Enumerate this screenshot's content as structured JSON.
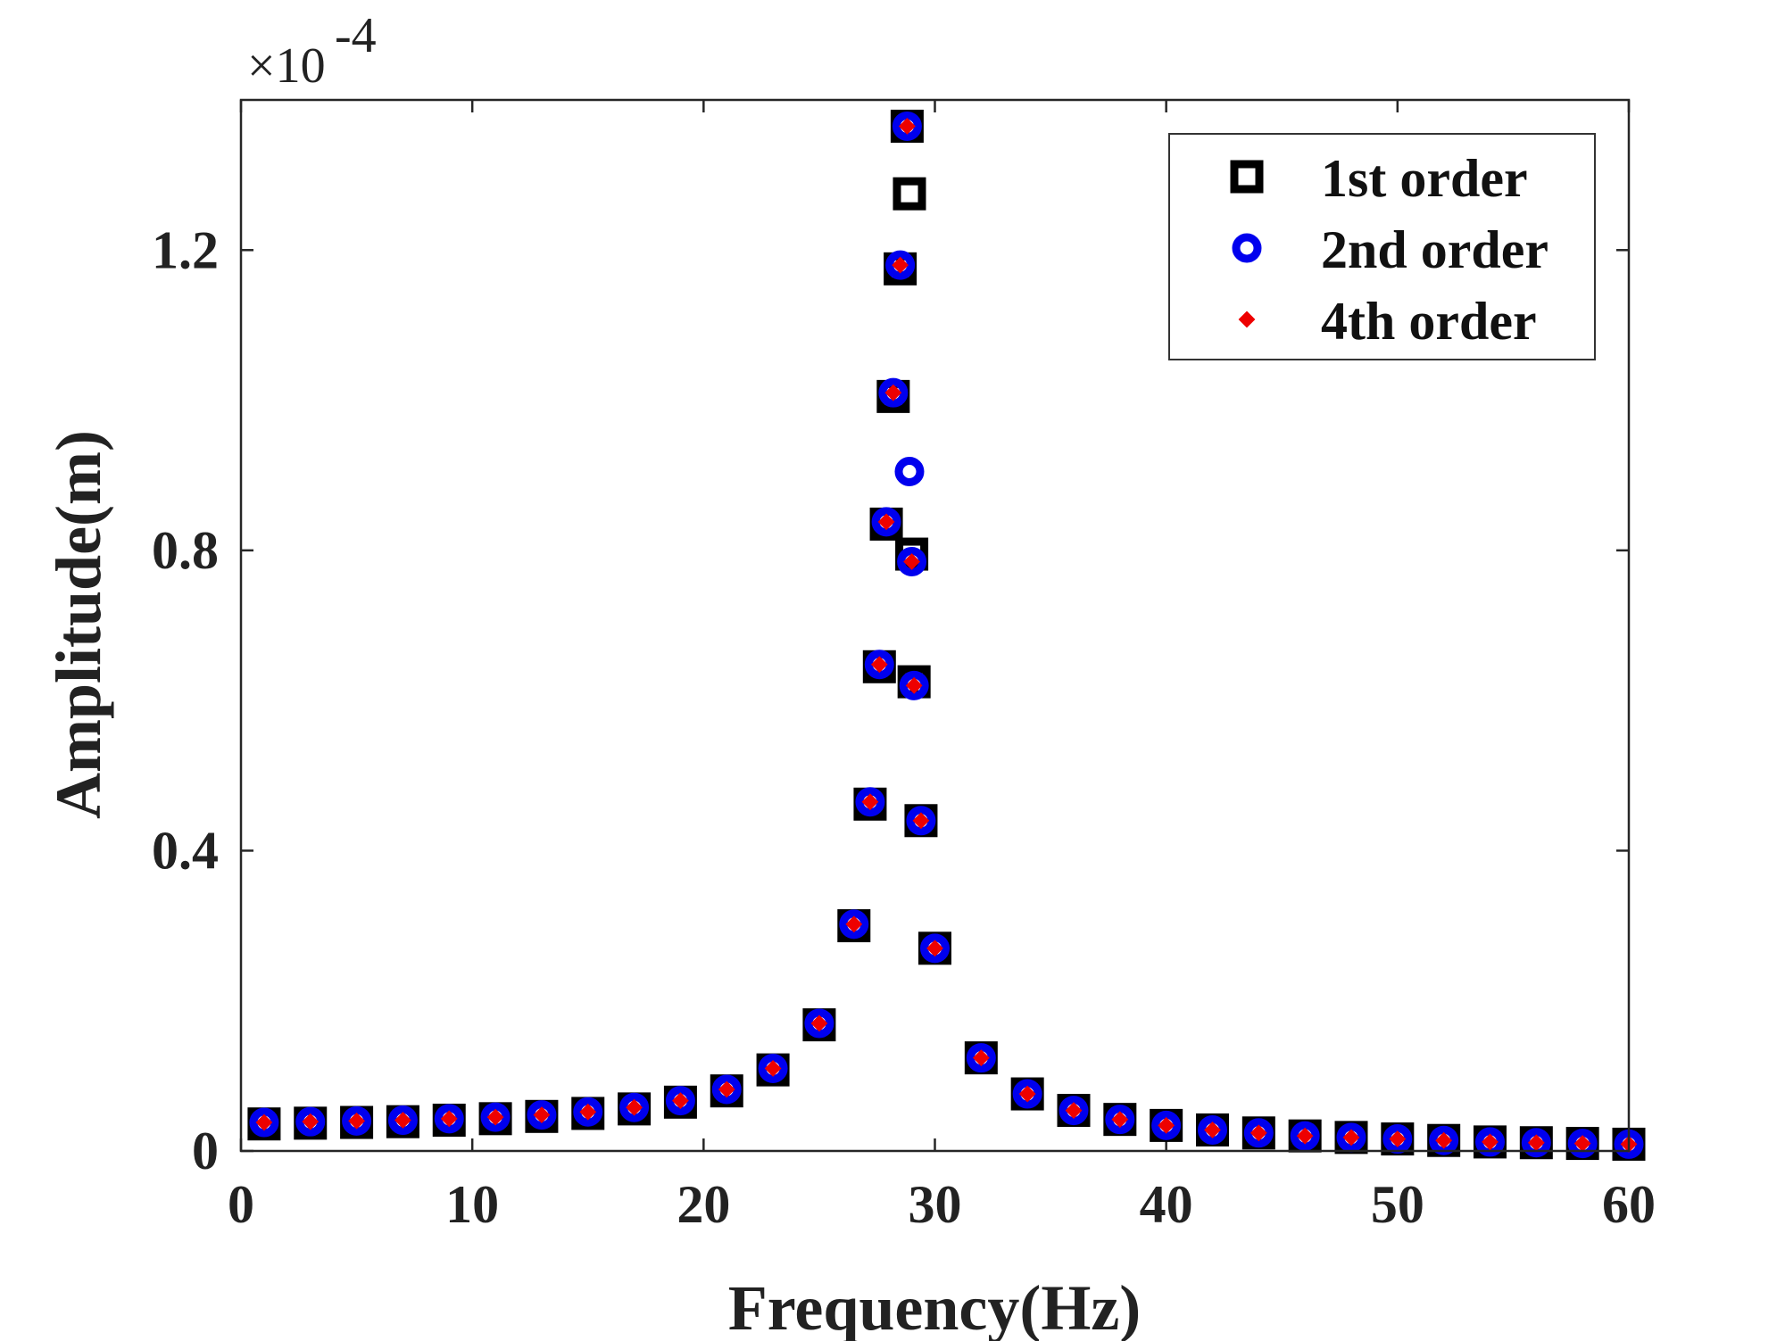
{
  "chart_data": {
    "type": "scatter",
    "xlabel": "Frequency(Hz)",
    "ylabel": "Amplitude(m)",
    "y_multiplier_label": "×10",
    "y_multiplier_exponent": "-4",
    "xlim": [
      0,
      60
    ],
    "ylim": [
      0,
      1.4
    ],
    "x_ticks": [
      "0",
      "10",
      "20",
      "30",
      "40",
      "50",
      "60"
    ],
    "y_ticks": [
      "0",
      "0.4",
      "0.8",
      "1.2"
    ],
    "grid": false,
    "legend_position": "top-right",
    "series": [
      {
        "name": "1st order",
        "marker": "square",
        "color": "#000000",
        "points": [
          [
            1,
            0.036
          ],
          [
            3,
            0.037
          ],
          [
            5,
            0.038
          ],
          [
            7,
            0.039
          ],
          [
            9,
            0.041
          ],
          [
            11,
            0.043
          ],
          [
            13,
            0.046
          ],
          [
            15,
            0.05
          ],
          [
            17,
            0.056
          ],
          [
            19,
            0.065
          ],
          [
            21,
            0.08
          ],
          [
            23,
            0.108
          ],
          [
            25,
            0.168
          ],
          [
            26.5,
            0.3
          ],
          [
            27.2,
            0.462
          ],
          [
            27.6,
            0.645
          ],
          [
            27.9,
            0.835
          ],
          [
            28.2,
            1.005
          ],
          [
            28.5,
            1.175
          ],
          [
            28.8,
            1.365
          ],
          [
            28.9,
            1.275
          ],
          [
            29.0,
            0.795
          ],
          [
            29.1,
            0.625
          ],
          [
            29.4,
            0.44
          ],
          [
            30,
            0.27
          ],
          [
            32,
            0.124
          ],
          [
            34,
            0.076
          ],
          [
            36,
            0.054
          ],
          [
            38,
            0.042
          ],
          [
            40,
            0.034
          ],
          [
            42,
            0.028
          ],
          [
            44,
            0.024
          ],
          [
            46,
            0.02
          ],
          [
            48,
            0.018
          ],
          [
            50,
            0.016
          ],
          [
            52,
            0.014
          ],
          [
            54,
            0.012
          ],
          [
            56,
            0.011
          ],
          [
            58,
            0.01
          ],
          [
            60,
            0.009
          ]
        ]
      },
      {
        "name": "2nd order",
        "marker": "circle",
        "color": "#0000ee",
        "points": [
          [
            1,
            0.038
          ],
          [
            3,
            0.039
          ],
          [
            5,
            0.04
          ],
          [
            7,
            0.041
          ],
          [
            9,
            0.043
          ],
          [
            11,
            0.045
          ],
          [
            13,
            0.048
          ],
          [
            15,
            0.052
          ],
          [
            17,
            0.058
          ],
          [
            19,
            0.067
          ],
          [
            21,
            0.082
          ],
          [
            23,
            0.11
          ],
          [
            25,
            0.17
          ],
          [
            26.5,
            0.302
          ],
          [
            27.2,
            0.465
          ],
          [
            27.6,
            0.648
          ],
          [
            27.9,
            0.838
          ],
          [
            28.2,
            1.01
          ],
          [
            28.5,
            1.18
          ],
          [
            28.8,
            1.365
          ],
          [
            28.9,
            0.905
          ],
          [
            29.0,
            0.785
          ],
          [
            29.1,
            0.62
          ],
          [
            29.4,
            0.44
          ],
          [
            30,
            0.27
          ],
          [
            32,
            0.124
          ],
          [
            34,
            0.076
          ],
          [
            36,
            0.054
          ],
          [
            38,
            0.042
          ],
          [
            40,
            0.034
          ],
          [
            42,
            0.028
          ],
          [
            44,
            0.024
          ],
          [
            46,
            0.02
          ],
          [
            48,
            0.018
          ],
          [
            50,
            0.016
          ],
          [
            52,
            0.014
          ],
          [
            54,
            0.012
          ],
          [
            56,
            0.011
          ],
          [
            58,
            0.01
          ],
          [
            60,
            0.009
          ]
        ]
      },
      {
        "name": "4th order",
        "marker": "diamond",
        "color": "#ee0000",
        "points": [
          [
            1,
            0.038
          ],
          [
            3,
            0.039
          ],
          [
            5,
            0.04
          ],
          [
            7,
            0.041
          ],
          [
            9,
            0.043
          ],
          [
            11,
            0.045
          ],
          [
            13,
            0.048
          ],
          [
            15,
            0.052
          ],
          [
            17,
            0.058
          ],
          [
            19,
            0.067
          ],
          [
            21,
            0.082
          ],
          [
            23,
            0.11
          ],
          [
            25,
            0.17
          ],
          [
            26.5,
            0.302
          ],
          [
            27.2,
            0.465
          ],
          [
            27.6,
            0.648
          ],
          [
            27.9,
            0.838
          ],
          [
            28.2,
            1.01
          ],
          [
            28.5,
            1.18
          ],
          [
            28.8,
            1.365
          ],
          [
            29.0,
            0.785
          ],
          [
            29.1,
            0.62
          ],
          [
            29.4,
            0.44
          ],
          [
            30,
            0.27
          ],
          [
            32,
            0.124
          ],
          [
            34,
            0.076
          ],
          [
            36,
            0.054
          ],
          [
            38,
            0.042
          ],
          [
            40,
            0.034
          ],
          [
            42,
            0.028
          ],
          [
            44,
            0.024
          ],
          [
            46,
            0.02
          ],
          [
            48,
            0.018
          ],
          [
            50,
            0.016
          ],
          [
            52,
            0.014
          ],
          [
            54,
            0.012
          ],
          [
            56,
            0.011
          ],
          [
            58,
            0.01
          ],
          [
            60,
            0.009
          ]
        ]
      }
    ]
  }
}
